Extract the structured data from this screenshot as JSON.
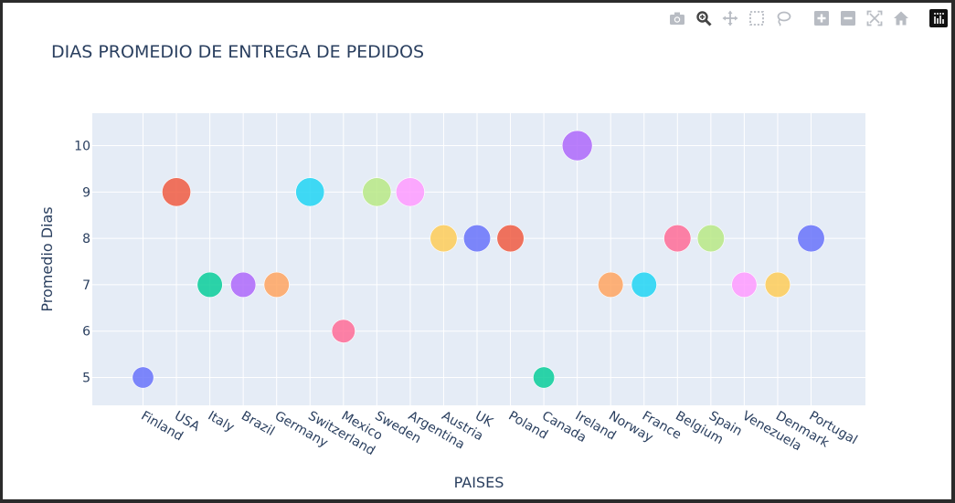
{
  "modebar": {
    "buttons": [
      {
        "name": "camera-icon",
        "active": false
      },
      {
        "name": "zoom-icon",
        "active": true
      },
      {
        "name": "pan-icon",
        "active": false
      },
      {
        "name": "box-select-icon",
        "active": false
      },
      {
        "name": "lasso-select-icon",
        "active": false
      },
      {
        "name": "zoom-in-icon",
        "active": false
      },
      {
        "name": "zoom-out-icon",
        "active": false
      },
      {
        "name": "autoscale-icon",
        "active": false
      },
      {
        "name": "reset-axes-icon",
        "active": false
      },
      {
        "name": "plotly-logo-icon",
        "active": false
      }
    ]
  },
  "chart_data": {
    "type": "scatter",
    "title": "DIAS PROMEDIO DE ENTREGA DE PEDIDOS",
    "xlabel": "PAISES",
    "ylabel": "Promedio Dias",
    "categories": [
      "Finland",
      "USA",
      "Italy",
      "Brazil",
      "Germany",
      "Switzerland",
      "Mexico",
      "Sweden",
      "Argentina",
      "Austria",
      "UK",
      "Poland",
      "Canada",
      "Ireland",
      "Norway",
      "France",
      "Belgium",
      "Spain",
      "Venezuela",
      "Denmark",
      "Portugal"
    ],
    "values": [
      5,
      9,
      7,
      7,
      7,
      9,
      6,
      9,
      9,
      8,
      8,
      8,
      5,
      10,
      7,
      7,
      8,
      8,
      7,
      7,
      8
    ],
    "colors": [
      "#636efa",
      "#EF553B",
      "#00cc96",
      "#ab63fa",
      "#FFA15A",
      "#19d3f3",
      "#FF6692",
      "#B6E880",
      "#FF97FF",
      "#FECB52",
      "#636efa",
      "#EF553B",
      "#00cc96",
      "#ab63fa",
      "#FFA15A",
      "#19d3f3",
      "#FF6692",
      "#B6E880",
      "#FF97FF",
      "#FECB52",
      "#636efa"
    ],
    "yticks": [
      5,
      6,
      7,
      8,
      9,
      10
    ],
    "ylim": [
      4.4,
      10.7
    ],
    "grid": true,
    "legend": false,
    "plot_bg": "#e5ecf6"
  }
}
